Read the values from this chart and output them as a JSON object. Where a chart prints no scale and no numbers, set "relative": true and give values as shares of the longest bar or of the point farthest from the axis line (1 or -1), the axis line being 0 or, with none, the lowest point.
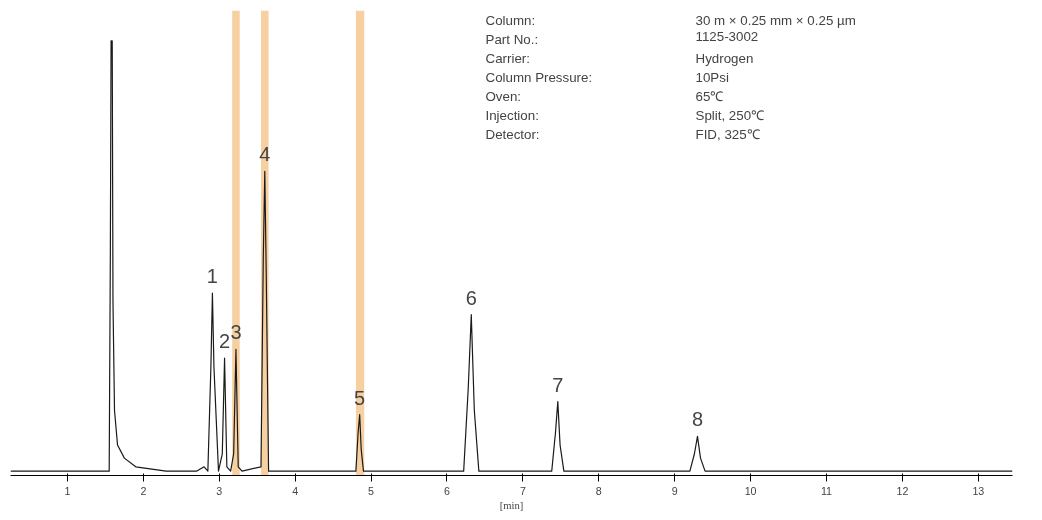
{
  "chart_data": {
    "type": "line",
    "relative": true,
    "xlabel": "[min]",
    "x": [
      0.25,
      1.0,
      1.5,
      1.55,
      1.565,
      1.575,
      1.59,
      1.6,
      1.62,
      1.66,
      1.75,
      1.9,
      2.3,
      2.7,
      2.8,
      2.85,
      2.89,
      2.91,
      2.93,
      2.99,
      3.04,
      3.07,
      3.1,
      3.15,
      3.19,
      3.22,
      3.25,
      3.3,
      3.55,
      3.58,
      3.6,
      3.62,
      3.65,
      4.5,
      4.8,
      4.83,
      4.85,
      4.87,
      4.9,
      5.5,
      6.22,
      6.28,
      6.32,
      6.36,
      6.42,
      7.38,
      7.43,
      7.46,
      7.49,
      7.54,
      9.2,
      9.26,
      9.3,
      9.34,
      9.4,
      11.0,
      13.45
    ],
    "series": [
      {
        "color": "#1a1a1a",
        "values": [
          0.01,
          0.01,
          0.01,
          0.01,
          0.5,
          1,
          1,
          0.4,
          0.15,
          0.07,
          0.04,
          0.02,
          0.01,
          0.01,
          0.02,
          0.01,
          0.25,
          0.42,
          0.25,
          0.01,
          0.05,
          0.27,
          0.02,
          0.01,
          0.05,
          0.29,
          0.02,
          0.01,
          0.02,
          0.5,
          0.7,
          0.45,
          0.01,
          0.01,
          0.01,
          0.1,
          0.14,
          0.06,
          0.01,
          0.01,
          0.01,
          0.2,
          0.37,
          0.15,
          0.01,
          0.01,
          0.1,
          0.17,
          0.07,
          0.01,
          0.01,
          0.05,
          0.09,
          0.04,
          0.01,
          0.01,
          0.01
        ]
      }
    ],
    "xlim": [
      0.25,
      13.45
    ],
    "xticks": [
      1,
      2,
      3,
      4,
      5,
      6,
      7,
      8,
      9,
      10,
      11,
      12,
      13
    ],
    "grid": false,
    "bands": [
      {
        "axis": "x",
        "from": 3.17,
        "to": 3.27,
        "color": "#f5c48a"
      },
      {
        "axis": "x",
        "from": 3.55,
        "to": 3.65,
        "color": "#f5c48a"
      },
      {
        "axis": "x",
        "from": 4.8,
        "to": 4.91,
        "color": "#f5c48a"
      }
    ],
    "annotations": [
      {
        "text": "1",
        "x": 2.91,
        "y": 0.42
      },
      {
        "text": "2",
        "x": 3.07,
        "y": 0.27
      },
      {
        "text": "3",
        "x": 3.22,
        "y": 0.29
      },
      {
        "text": "4",
        "x": 3.6,
        "y": 0.7
      },
      {
        "text": "5",
        "x": 4.85,
        "y": 0.14
      },
      {
        "text": "6",
        "x": 6.32,
        "y": 0.37
      },
      {
        "text": "7",
        "x": 7.46,
        "y": 0.17
      },
      {
        "text": "8",
        "x": 9.3,
        "y": 0.09
      },
      "Column:",
      "30 m × 0.25 mm × 0.25 µm",
      "Part No.:",
      "1125-3002",
      "Carrier:",
      "Hydrogen",
      "Column Pressure:",
      "10Psi",
      "Oven:",
      "65℃",
      "Injection:",
      "Split, 250℃",
      "Detector:",
      "FID, 325℃"
    ]
  }
}
